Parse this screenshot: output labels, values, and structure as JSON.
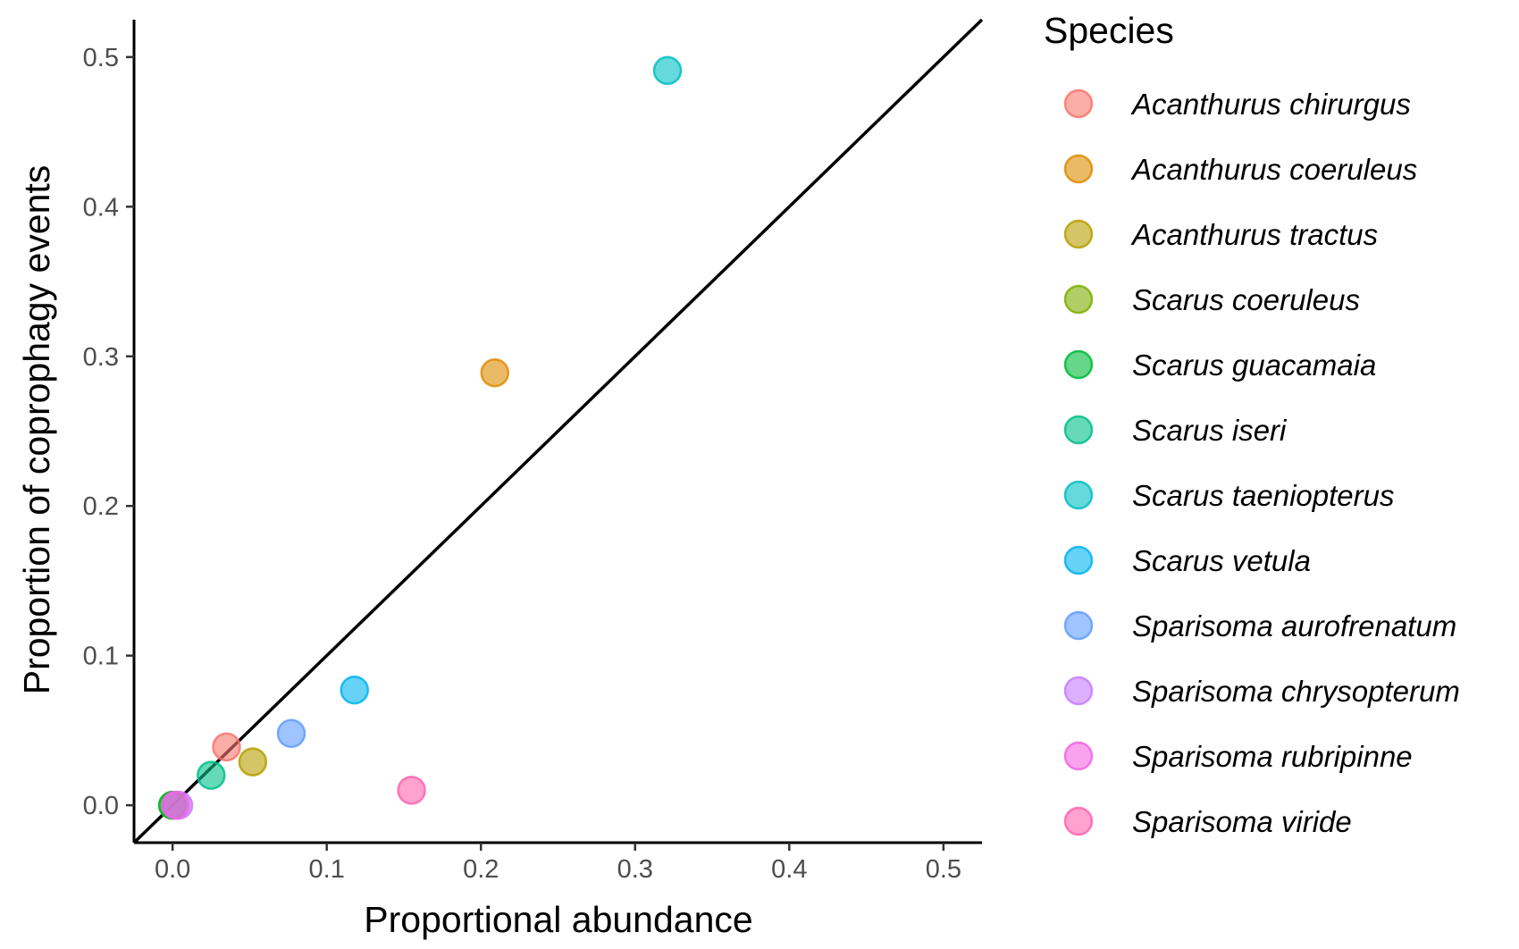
{
  "chart_data": {
    "type": "scatter",
    "xlabel": "Proportional abundance",
    "ylabel": "Proportion of coprophagy events",
    "xlim": [
      -0.025,
      0.525
    ],
    "ylim": [
      -0.025,
      0.525
    ],
    "x_ticks": [
      "0.0",
      "0.1",
      "0.2",
      "0.3",
      "0.4",
      "0.5"
    ],
    "y_ticks": [
      "0.0",
      "0.1",
      "0.2",
      "0.3",
      "0.4",
      "0.5"
    ],
    "reference_line": "y = x",
    "grid": false,
    "legend_title": "Species",
    "legend_position": "right",
    "series": [
      {
        "name": "Acanthurus chirurgus",
        "color": "#F8766D",
        "x": 0.035,
        "y": 0.039
      },
      {
        "name": "Acanthurus coeruleus",
        "color": "#DE8C00",
        "x": 0.209,
        "y": 0.289
      },
      {
        "name": "Acanthurus tractus",
        "color": "#B79F00",
        "x": 0.052,
        "y": 0.029
      },
      {
        "name": "Scarus coeruleus",
        "color": "#7CAE00",
        "x": 0.0,
        "y": 0.0
      },
      {
        "name": "Scarus guacamaia",
        "color": "#00BA38",
        "x": 0.0,
        "y": 0.0
      },
      {
        "name": "Scarus iseri",
        "color": "#00C08B",
        "x": 0.025,
        "y": 0.02
      },
      {
        "name": "Scarus taeniopterus",
        "color": "#00BFC4",
        "x": 0.321,
        "y": 0.491
      },
      {
        "name": "Scarus vetula",
        "color": "#00B4F0",
        "x": 0.118,
        "y": 0.077
      },
      {
        "name": "Sparisoma aurofrenatum",
        "color": "#619CFF",
        "x": 0.077,
        "y": 0.048
      },
      {
        "name": "Sparisoma chrysopterum",
        "color": "#C77CFF",
        "x": 0.004,
        "y": 0.0
      },
      {
        "name": "Sparisoma rubripinne",
        "color": "#F564E3",
        "x": 0.002,
        "y": 0.0
      },
      {
        "name": "Sparisoma viride",
        "color": "#FF64B0",
        "x": 0.155,
        "y": 0.01
      }
    ]
  }
}
